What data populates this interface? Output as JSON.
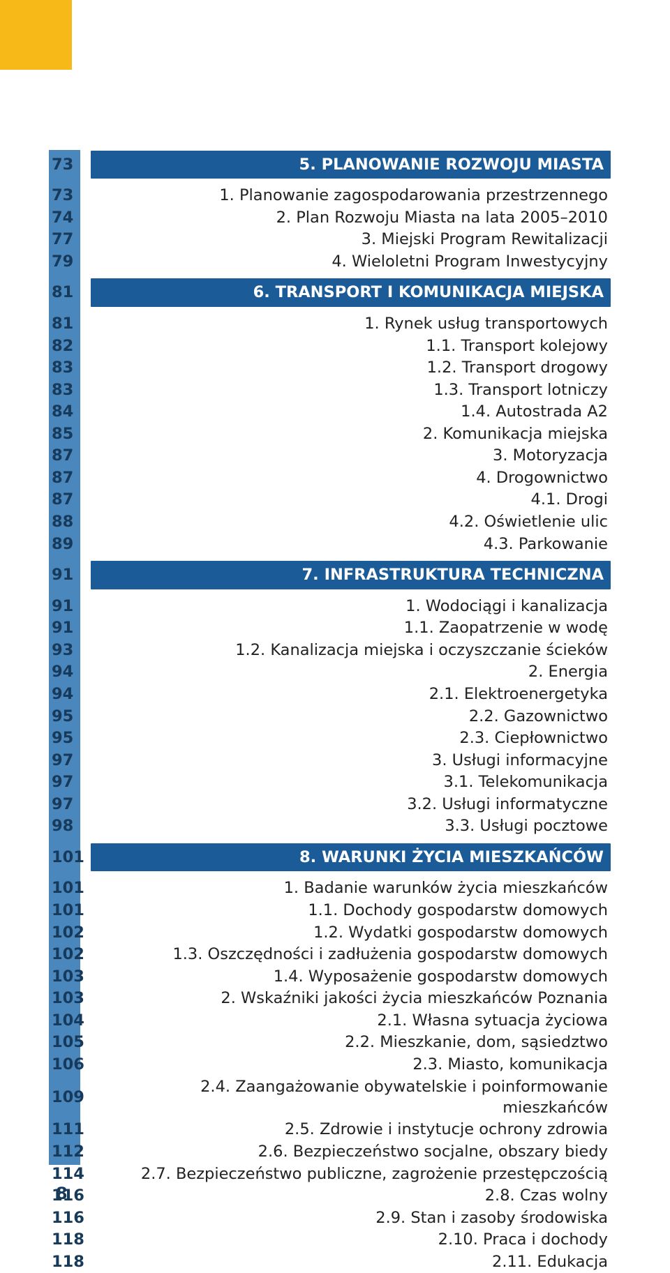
{
  "colors": {
    "tab": "#f7b917",
    "strip": "#4a87bd",
    "header_bg": "#1a5b98",
    "header_fg": "#ffffff",
    "page_fg": "#173a5b",
    "text_fg": "#222222"
  },
  "page_number": "8",
  "toc": [
    {
      "section": true,
      "page": "73",
      "title": "5. PLANOWANIE ROZWOJU MIASTA"
    },
    {
      "page": "73",
      "title": "1. Planowanie zagospodarowania przestrzennego"
    },
    {
      "page": "74",
      "title": "2. Plan Rozwoju Miasta na lata 2005–2010"
    },
    {
      "page": "77",
      "title": "3. Miejski Program Rewitalizacji"
    },
    {
      "page": "79",
      "title": "4. Wieloletni Program Inwestycyjny"
    },
    {
      "section": true,
      "page": "81",
      "title": "6. TRANSPORT I KOMUNIKACJA MIEJSKA"
    },
    {
      "page": "81",
      "title": "1. Rynek usług transportowych"
    },
    {
      "page": "82",
      "title": "1.1. Transport kolejowy"
    },
    {
      "page": "83",
      "title": "1.2. Transport drogowy"
    },
    {
      "page": "83",
      "title": "1.3. Transport lotniczy"
    },
    {
      "page": "84",
      "title": "1.4. Autostrada A2"
    },
    {
      "page": "85",
      "title": "2. Komunikacja miejska"
    },
    {
      "page": "87",
      "title": "3. Motoryzacja"
    },
    {
      "page": "87",
      "title": "4. Drogownictwo"
    },
    {
      "page": "87",
      "title": "4.1. Drogi"
    },
    {
      "page": "88",
      "title": "4.2. Oświetlenie ulic"
    },
    {
      "page": "89",
      "title": "4.3. Parkowanie"
    },
    {
      "section": true,
      "page": "91",
      "title": "7. INFRASTRUKTURA TECHNICZNA"
    },
    {
      "page": "91",
      "title": "1. Wodociągi i kanalizacja"
    },
    {
      "page": "91",
      "title": "1.1. Zaopatrzenie w wodę"
    },
    {
      "page": "93",
      "title": "1.2. Kanalizacja miejska i oczyszczanie ścieków"
    },
    {
      "page": "94",
      "title": "2. Energia"
    },
    {
      "page": "94",
      "title": "2.1. Elektroenergetyka"
    },
    {
      "page": "95",
      "title": "2.2. Gazownictwo"
    },
    {
      "page": "95",
      "title": "2.3. Ciepłownictwo"
    },
    {
      "page": "97",
      "title": "3. Usługi informacyjne"
    },
    {
      "page": "97",
      "title": "3.1. Telekomunikacja"
    },
    {
      "page": "97",
      "title": "3.2. Usługi informatyczne"
    },
    {
      "page": "98",
      "title": "3.3. Usługi pocztowe"
    },
    {
      "section": true,
      "page": "101",
      "title": "8. WARUNKI ŻYCIA MIESZKAŃCÓW"
    },
    {
      "page": "101",
      "title": "1. Badanie warunków życia mieszkańców"
    },
    {
      "page": "101",
      "title": "1.1. Dochody gospodarstw domowych"
    },
    {
      "page": "102",
      "title": "1.2. Wydatki gospodarstw domowych"
    },
    {
      "page": "102",
      "title": "1.3. Oszczędności i zadłużenia gospodarstw domowych"
    },
    {
      "page": "103",
      "title": "1.4. Wyposażenie gospodarstw domowych"
    },
    {
      "page": "103",
      "title": "2. Wskaźniki jakości życia mieszkańców Poznania"
    },
    {
      "page": "104",
      "title": "2.1. Własna sytuacja życiowa"
    },
    {
      "page": "105",
      "title": "2.2. Mieszkanie, dom, sąsiedztwo"
    },
    {
      "page": "106",
      "title": "2.3. Miasto, komunikacja"
    },
    {
      "page": "109",
      "title": "2.4. Zaangażowanie obywatelskie i poinformowanie mieszkańców"
    },
    {
      "page": "111",
      "title": "2.5. Zdrowie i instytucje ochrony zdrowia"
    },
    {
      "page": "112",
      "title": "2.6. Bezpieczeństwo socjalne, obszary biedy"
    },
    {
      "page": "114",
      "title": "2.7. Bezpieczeństwo publiczne, zagrożenie przestępczością"
    },
    {
      "page": "116",
      "title": "2.8. Czas wolny"
    },
    {
      "page": "116",
      "title": "2.9. Stan i zasoby środowiska"
    },
    {
      "page": "118",
      "title": "2.10. Praca i dochody"
    },
    {
      "page": "118",
      "title": "2.11. Edukacja"
    }
  ]
}
